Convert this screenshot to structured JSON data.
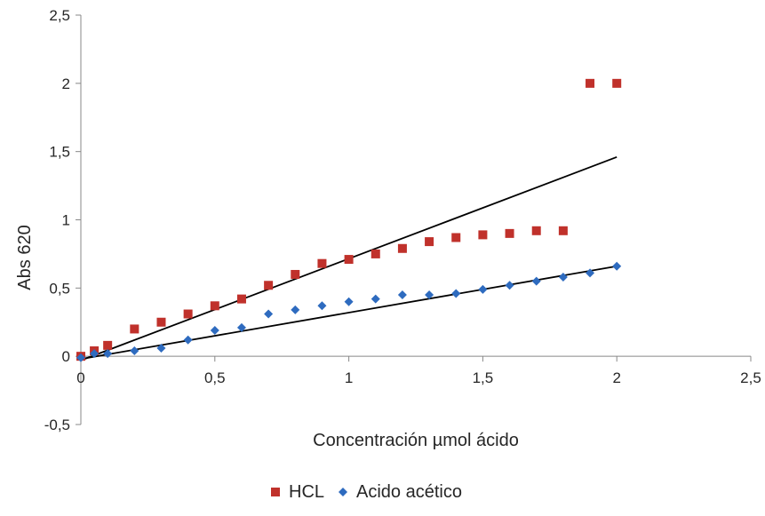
{
  "chart_data": {
    "type": "scatter",
    "xlabel": "Concentración µmol ácido",
    "ylabel": "Abs 620",
    "xlim": [
      0,
      2.5
    ],
    "ylim": [
      -0.5,
      2.5
    ],
    "x_ticks": [
      "0",
      "0,5",
      "1",
      "1,5",
      "2",
      "2,5"
    ],
    "y_ticks": [
      "-0,5",
      "0",
      "0,5",
      "1",
      "1,5",
      "2",
      "2,5"
    ],
    "grid": false,
    "legend_position": "bottom",
    "series": [
      {
        "name": "HCL",
        "marker": "square",
        "color": "#c0312b",
        "points": [
          {
            "x": 0,
            "y": 0
          },
          {
            "x": 0.05,
            "y": 0.04
          },
          {
            "x": 0.1,
            "y": 0.08
          },
          {
            "x": 0.2,
            "y": 0.2
          },
          {
            "x": 0.3,
            "y": 0.25
          },
          {
            "x": 0.4,
            "y": 0.31
          },
          {
            "x": 0.5,
            "y": 0.37
          },
          {
            "x": 0.6,
            "y": 0.42
          },
          {
            "x": 0.7,
            "y": 0.52
          },
          {
            "x": 0.8,
            "y": 0.6
          },
          {
            "x": 0.9,
            "y": 0.68
          },
          {
            "x": 1.0,
            "y": 0.71
          },
          {
            "x": 1.1,
            "y": 0.75
          },
          {
            "x": 1.2,
            "y": 0.79
          },
          {
            "x": 1.3,
            "y": 0.84
          },
          {
            "x": 1.4,
            "y": 0.87
          },
          {
            "x": 1.5,
            "y": 0.89
          },
          {
            "x": 1.6,
            "y": 0.9
          },
          {
            "x": 1.7,
            "y": 0.92
          },
          {
            "x": 1.8,
            "y": 0.92
          },
          {
            "x": 1.9,
            "y": 2.0
          },
          {
            "x": 2.0,
            "y": 2.0
          }
        ],
        "trendline": {
          "x": [
            0,
            2.0
          ],
          "y": [
            -0.03,
            1.46
          ]
        }
      },
      {
        "name": "Acido acético",
        "marker": "diamond",
        "color": "#2e6bbf",
        "points": [
          {
            "x": 0,
            "y": -0.01
          },
          {
            "x": 0.05,
            "y": 0.02
          },
          {
            "x": 0.1,
            "y": 0.02
          },
          {
            "x": 0.2,
            "y": 0.04
          },
          {
            "x": 0.3,
            "y": 0.06
          },
          {
            "x": 0.4,
            "y": 0.12
          },
          {
            "x": 0.5,
            "y": 0.19
          },
          {
            "x": 0.6,
            "y": 0.21
          },
          {
            "x": 0.7,
            "y": 0.31
          },
          {
            "x": 0.8,
            "y": 0.34
          },
          {
            "x": 0.9,
            "y": 0.37
          },
          {
            "x": 1.0,
            "y": 0.4
          },
          {
            "x": 1.1,
            "y": 0.42
          },
          {
            "x": 1.2,
            "y": 0.45
          },
          {
            "x": 1.3,
            "y": 0.45
          },
          {
            "x": 1.4,
            "y": 0.46
          },
          {
            "x": 1.5,
            "y": 0.49
          },
          {
            "x": 1.6,
            "y": 0.52
          },
          {
            "x": 1.7,
            "y": 0.55
          },
          {
            "x": 1.8,
            "y": 0.58
          },
          {
            "x": 1.9,
            "y": 0.61
          },
          {
            "x": 2.0,
            "y": 0.66
          }
        ],
        "trendline": {
          "x": [
            0,
            2.0
          ],
          "y": [
            -0.02,
            0.66
          ]
        }
      }
    ],
    "trendline_color": "#000000"
  }
}
